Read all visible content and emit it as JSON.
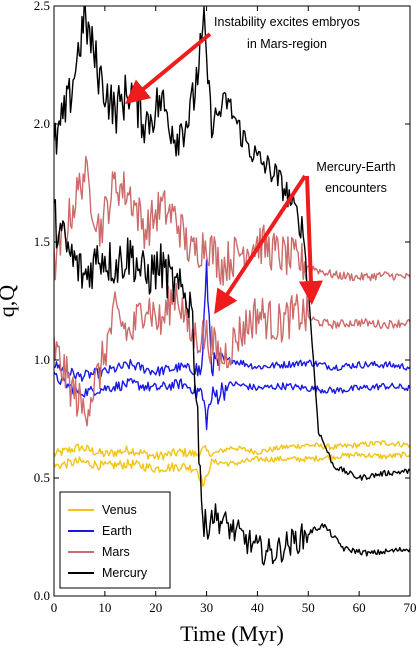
{
  "chart_data": {
    "type": "line",
    "title": "",
    "xlabel": "Time (Myr)",
    "ylabel": "q,Q",
    "xlim": [
      0,
      70
    ],
    "ylim": [
      0,
      2.5
    ],
    "xticks": [
      "0",
      "10",
      "20",
      "30",
      "40",
      "50",
      "60",
      "70"
    ],
    "yticks": [
      "0.0",
      "0.5",
      "1.0",
      "1.5",
      "2.0",
      "2.5"
    ],
    "grid": false,
    "legend_position": "bottom-left",
    "series": [
      {
        "name": "Venus",
        "color": "#f2c418",
        "curves": [
          [
            [
              0,
              0.6
            ],
            [
              5,
              0.63
            ],
            [
              10,
              0.6
            ],
            [
              15,
              0.62
            ],
            [
              20,
              0.59
            ],
            [
              25,
              0.61
            ],
            [
              28,
              0.6
            ],
            [
              29.5,
              0.62
            ],
            [
              31,
              0.6
            ],
            [
              35,
              0.63
            ],
            [
              40,
              0.61
            ],
            [
              45,
              0.63
            ],
            [
              50,
              0.64
            ],
            [
              55,
              0.63
            ],
            [
              60,
              0.64
            ],
            [
              65,
              0.65
            ],
            [
              70,
              0.64
            ]
          ],
          [
            [
              0,
              0.55
            ],
            [
              5,
              0.57
            ],
            [
              10,
              0.55
            ],
            [
              15,
              0.56
            ],
            [
              20,
              0.54
            ],
            [
              25,
              0.55
            ],
            [
              28,
              0.54
            ],
            [
              29.5,
              0.47
            ],
            [
              31,
              0.57
            ],
            [
              35,
              0.56
            ],
            [
              40,
              0.58
            ],
            [
              45,
              0.58
            ],
            [
              50,
              0.58
            ],
            [
              55,
              0.59
            ],
            [
              60,
              0.6
            ],
            [
              65,
              0.59
            ],
            [
              70,
              0.6
            ]
          ]
        ]
      },
      {
        "name": "Earth",
        "color": "#1919e6",
        "curves": [
          [
            [
              0,
              0.98
            ],
            [
              5,
              0.93
            ],
            [
              10,
              0.95
            ],
            [
              15,
              0.98
            ],
            [
              20,
              0.95
            ],
            [
              25,
              0.97
            ],
            [
              29,
              0.95
            ],
            [
              30,
              1.38
            ],
            [
              31,
              0.98
            ],
            [
              35,
              1.0
            ],
            [
              40,
              0.97
            ],
            [
              45,
              0.98
            ],
            [
              50,
              0.99
            ],
            [
              55,
              0.97
            ],
            [
              60,
              0.98
            ],
            [
              65,
              0.98
            ],
            [
              70,
              0.97
            ]
          ],
          [
            [
              0,
              0.93
            ],
            [
              5,
              0.86
            ],
            [
              10,
              0.88
            ],
            [
              15,
              0.9
            ],
            [
              20,
              0.88
            ],
            [
              25,
              0.9
            ],
            [
              29,
              0.86
            ],
            [
              30,
              0.75
            ],
            [
              31,
              0.84
            ],
            [
              35,
              0.9
            ],
            [
              40,
              0.88
            ],
            [
              45,
              0.89
            ],
            [
              50,
              0.88
            ],
            [
              55,
              0.87
            ],
            [
              60,
              0.88
            ],
            [
              65,
              0.89
            ],
            [
              70,
              0.88
            ]
          ]
        ]
      },
      {
        "name": "Mars",
        "color": "#cd6a6a",
        "curves": [
          [
            [
              0,
              1.4
            ],
            [
              3,
              1.6
            ],
            [
              6,
              1.8
            ],
            [
              9,
              1.55
            ],
            [
              12,
              1.75
            ],
            [
              15,
              1.7
            ],
            [
              18,
              1.55
            ],
            [
              21,
              1.65
            ],
            [
              24,
              1.6
            ],
            [
              27,
              1.45
            ],
            [
              30,
              1.5
            ],
            [
              33,
              1.4
            ],
            [
              36,
              1.45
            ],
            [
              40,
              1.5
            ],
            [
              44,
              1.45
            ],
            [
              48,
              1.42
            ],
            [
              52,
              1.38
            ],
            [
              55,
              1.36
            ],
            [
              60,
              1.35
            ],
            [
              65,
              1.36
            ],
            [
              70,
              1.35
            ]
          ],
          [
            [
              0,
              1.05
            ],
            [
              3,
              0.9
            ],
            [
              6,
              0.78
            ],
            [
              9,
              0.95
            ],
            [
              12,
              1.2
            ],
            [
              15,
              1.1
            ],
            [
              18,
              1.25
            ],
            [
              21,
              1.15
            ],
            [
              24,
              1.3
            ],
            [
              27,
              1.1
            ],
            [
              30,
              1.1
            ],
            [
              33,
              1.0
            ],
            [
              36,
              1.1
            ],
            [
              40,
              1.2
            ],
            [
              44,
              1.15
            ],
            [
              48,
              1.2
            ],
            [
              52,
              1.16
            ],
            [
              55,
              1.15
            ],
            [
              60,
              1.16
            ],
            [
              65,
              1.15
            ],
            [
              70,
              1.16
            ]
          ]
        ]
      },
      {
        "name": "Mercury",
        "color": "#000000",
        "curves": [
          [
            [
              0,
              1.9
            ],
            [
              3,
              2.1
            ],
            [
              6,
              2.45
            ],
            [
              9,
              2.2
            ],
            [
              12,
              2.05
            ],
            [
              15,
              2.15
            ],
            [
              18,
              2.0
            ],
            [
              21,
              2.1
            ],
            [
              24,
              1.95
            ],
            [
              27,
              2.05
            ],
            [
              29.5,
              2.4
            ],
            [
              31,
              2.0
            ],
            [
              34,
              2.1
            ],
            [
              37,
              1.95
            ],
            [
              40,
              1.85
            ],
            [
              43,
              1.8
            ],
            [
              46,
              1.7
            ],
            [
              49,
              1.55
            ],
            [
              50,
              1.3
            ],
            [
              51,
              1.0
            ],
            [
              52,
              0.7
            ],
            [
              55,
              0.55
            ],
            [
              60,
              0.5
            ],
            [
              65,
              0.52
            ],
            [
              70,
              0.53
            ]
          ],
          [
            [
              0,
              1.6
            ],
            [
              3,
              1.45
            ],
            [
              6,
              1.35
            ],
            [
              9,
              1.45
            ],
            [
              12,
              1.4
            ],
            [
              15,
              1.45
            ],
            [
              18,
              1.35
            ],
            [
              21,
              1.4
            ],
            [
              24,
              1.3
            ],
            [
              27,
              1.25
            ],
            [
              29.5,
              0.25
            ],
            [
              31,
              0.35
            ],
            [
              34,
              0.3
            ],
            [
              37,
              0.25
            ],
            [
              40,
              0.2
            ],
            [
              43,
              0.18
            ],
            [
              46,
              0.22
            ],
            [
              49,
              0.25
            ],
            [
              51,
              0.28
            ],
            [
              53,
              0.3
            ],
            [
              57,
              0.2
            ],
            [
              62,
              0.18
            ],
            [
              66,
              0.19
            ],
            [
              70,
              0.2
            ]
          ]
        ]
      }
    ],
    "annotations": [
      {
        "lines": [
          "Instability excites embryos",
          "in Mars-region"
        ],
        "arrow_to": [
          15,
          2.1
        ]
      },
      {
        "lines": [
          "Mercury-Earth",
          "encounters"
        ],
        "arrows_to": [
          [
            32,
            1.22
          ],
          [
            51,
            1.25
          ]
        ]
      }
    ]
  }
}
